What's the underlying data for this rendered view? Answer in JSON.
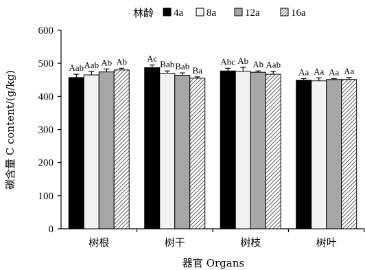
{
  "chart_data": {
    "type": "bar",
    "legend_title": "林龄",
    "legend_placement": "top",
    "categories": [
      "树根",
      "树干",
      "树枝",
      "树叶"
    ],
    "series": [
      {
        "name": "4a",
        "fill": "solid-black",
        "values": [
          457,
          487,
          477,
          449
        ],
        "errors": [
          10,
          8,
          8,
          5
        ],
        "labels": [
          "Aab",
          "Ac",
          "Abc",
          "Aa"
        ]
      },
      {
        "name": "8a",
        "fill": "white",
        "values": [
          465,
          470,
          476,
          447
        ],
        "errors": [
          10,
          7,
          12,
          9
        ],
        "labels": [
          "Aab",
          "Bab",
          "Ab",
          "Aa"
        ]
      },
      {
        "name": "12a",
        "fill": "gray",
        "values": [
          474,
          464,
          473,
          451
        ],
        "errors": [
          9,
          7,
          4,
          3
        ],
        "labels": [
          "Ab",
          "Bab",
          "Ab",
          "Aa"
        ]
      },
      {
        "name": "16a",
        "fill": "hatched",
        "values": [
          480,
          455,
          467,
          451
        ],
        "errors": [
          5,
          4,
          9,
          6
        ],
        "labels": [
          "Ab",
          "Ba",
          "Aab",
          "Aa"
        ]
      }
    ],
    "ylabel": "碳含量 C content/(g/kg)",
    "xlabel": "器官 Organs",
    "ylim": [
      0,
      600
    ],
    "yticks": [
      0,
      100,
      200,
      300,
      400,
      500,
      600
    ],
    "grid": false
  }
}
